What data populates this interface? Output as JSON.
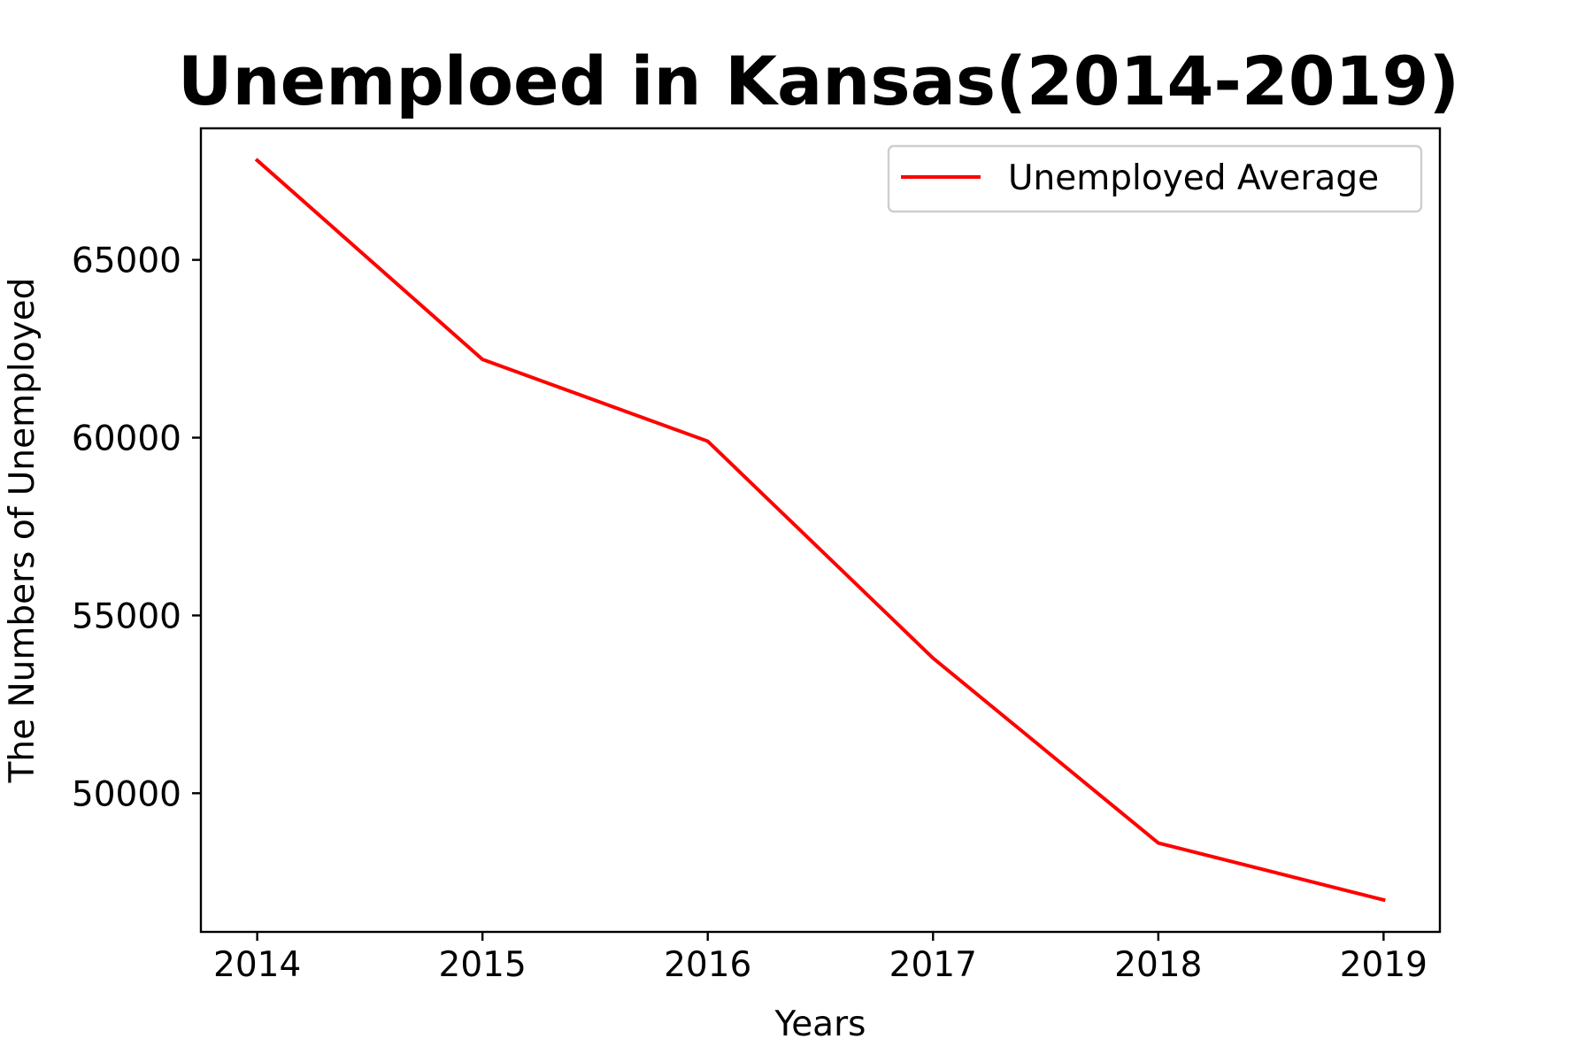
{
  "chart_data": {
    "type": "line",
    "title": "Unemploed in Kansas(2014-2019)",
    "xlabel": "Years",
    "ylabel": "The Numbers of Unemployed",
    "x": [
      2014,
      2015,
      2016,
      2017,
      2018,
      2019
    ],
    "x_tick_labels": [
      "2014",
      "2015",
      "2016",
      "2017",
      "2018",
      "2019"
    ],
    "y_ticks": [
      50000,
      55000,
      60000,
      65000
    ],
    "y_tick_labels": [
      "50000",
      "55000",
      "60000",
      "65000"
    ],
    "xlim": [
      2013.75,
      2019.25
    ],
    "ylim": [
      46100,
      68700
    ],
    "grid": false,
    "legend_position": "upper right",
    "series": [
      {
        "name": "Unemployed Average",
        "color": "#ff0000",
        "values": [
          67800,
          62200,
          59900,
          53800,
          48600,
          47000
        ]
      }
    ]
  }
}
